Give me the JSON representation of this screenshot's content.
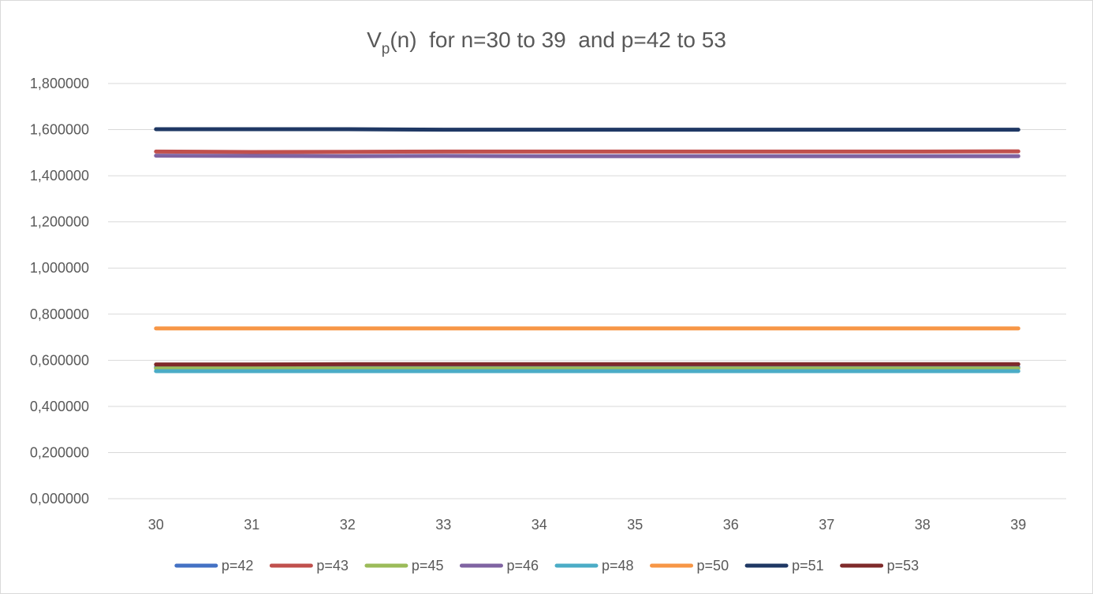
{
  "chart_data": {
    "type": "line",
    "title": {
      "main": "V",
      "subscript": "p",
      "rest": "(n)  for n=30 to 39  and p=42 to 53"
    },
    "xlabel": "",
    "ylabel": "",
    "x": [
      30,
      31,
      32,
      33,
      34,
      35,
      36,
      37,
      38,
      39
    ],
    "ylim": [
      0,
      1.8
    ],
    "yticks": [
      0,
      0.2,
      0.4,
      0.6,
      0.8,
      1.0,
      1.2,
      1.4,
      1.6,
      1.8
    ],
    "ytick_labels": [
      "0,000000",
      "0,200000",
      "0,400000",
      "0,600000",
      "0,800000",
      "1,000000",
      "1,200000",
      "1,400000",
      "1,600000",
      "1,800000"
    ],
    "grid": true,
    "legend_position": "bottom",
    "series": [
      {
        "name": "p=42",
        "color": "#4472c4",
        "values": [
          0.57,
          0.57,
          0.57,
          0.57,
          0.57,
          0.57,
          0.57,
          0.57,
          0.57,
          0.57
        ]
      },
      {
        "name": "p=43",
        "color": "#c0504d",
        "values": [
          1.505,
          1.503,
          1.504,
          1.505,
          1.505,
          1.505,
          1.505,
          1.505,
          1.505,
          1.506
        ]
      },
      {
        "name": "p=45",
        "color": "#9bbb59",
        "values": [
          0.565,
          0.565,
          0.565,
          0.565,
          0.565,
          0.565,
          0.565,
          0.565,
          0.565,
          0.565
        ]
      },
      {
        "name": "p=46",
        "color": "#8064a2",
        "values": [
          1.487,
          1.486,
          1.485,
          1.486,
          1.485,
          1.485,
          1.485,
          1.485,
          1.485,
          1.485
        ]
      },
      {
        "name": "p=48",
        "color": "#4bacc6",
        "values": [
          0.553,
          0.553,
          0.553,
          0.553,
          0.553,
          0.553,
          0.553,
          0.553,
          0.553,
          0.553
        ]
      },
      {
        "name": "p=50",
        "color": "#f79646",
        "values": [
          0.738,
          0.738,
          0.738,
          0.738,
          0.738,
          0.738,
          0.738,
          0.738,
          0.738,
          0.738
        ]
      },
      {
        "name": "p=51",
        "color": "#1f3864",
        "values": [
          1.602,
          1.602,
          1.602,
          1.6,
          1.6,
          1.6,
          1.6,
          1.6,
          1.6,
          1.6
        ]
      },
      {
        "name": "p=53",
        "color": "#7f2a2a",
        "values": [
          0.582,
          0.582,
          0.583,
          0.583,
          0.583,
          0.583,
          0.583,
          0.583,
          0.583,
          0.583
        ]
      }
    ]
  }
}
